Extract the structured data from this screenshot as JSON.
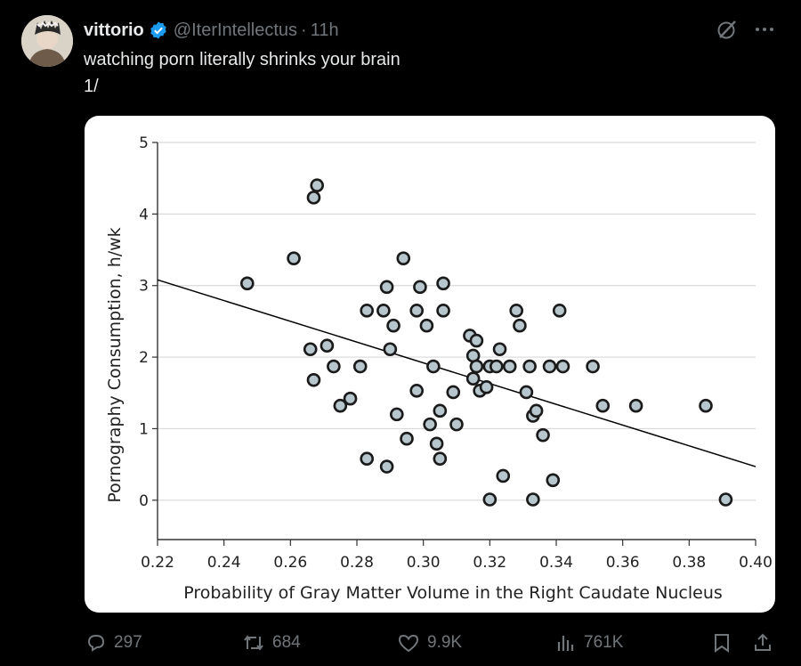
{
  "post": {
    "author_name": "vittorio",
    "handle": "@IterIntellectus",
    "separator": "·",
    "time": "11h",
    "text_line1": "watching porn literally shrinks your brain",
    "text_line2": "1/"
  },
  "icons": {
    "verified": "verified-badge-icon",
    "grok": "grok-icon",
    "more": "more-icon",
    "reply": "reply-icon",
    "repost": "repost-icon",
    "like": "like-icon",
    "views": "views-icon",
    "bookmark": "bookmark-icon",
    "share": "share-icon"
  },
  "stats": {
    "replies": "297",
    "reposts": "684",
    "likes": "9.9K",
    "views": "761K"
  },
  "colors": {
    "background": "#000000",
    "text": "#e7e9ea",
    "muted": "#71767b",
    "verified": "#1d9bf0",
    "point_fill": "#b7c6cc"
  },
  "chart_data": {
    "type": "scatter",
    "xlabel": "Probability of Gray Matter Volume in the Right Caudate Nucleus",
    "ylabel": "Pornography Consumption, h/wk",
    "xlim": [
      0.22,
      0.4
    ],
    "ylim": [
      -0.55,
      5.0
    ],
    "x_ticks": [
      "0.22",
      "0.24",
      "0.26",
      "0.28",
      "0.30",
      "0.32",
      "0.34",
      "0.36",
      "0.38",
      "0.40"
    ],
    "y_ticks": [
      "0",
      "1",
      "2",
      "3",
      "4",
      "5"
    ],
    "grid": "horizontal",
    "trend_line": {
      "x": [
        0.22,
        0.4
      ],
      "y": [
        3.08,
        0.47
      ]
    },
    "points": [
      [
        0.247,
        3.03
      ],
      [
        0.261,
        3.38
      ],
      [
        0.267,
        4.23
      ],
      [
        0.268,
        4.4
      ],
      [
        0.266,
        2.11
      ],
      [
        0.267,
        1.68
      ],
      [
        0.271,
        2.16
      ],
      [
        0.273,
        1.87
      ],
      [
        0.275,
        1.32
      ],
      [
        0.278,
        1.42
      ],
      [
        0.281,
        1.87
      ],
      [
        0.283,
        0.58
      ],
      [
        0.283,
        2.65
      ],
      [
        0.288,
        2.65
      ],
      [
        0.289,
        2.98
      ],
      [
        0.289,
        0.47
      ],
      [
        0.29,
        2.11
      ],
      [
        0.291,
        2.44
      ],
      [
        0.292,
        1.2
      ],
      [
        0.294,
        3.38
      ],
      [
        0.295,
        0.86
      ],
      [
        0.298,
        1.53
      ],
      [
        0.298,
        2.65
      ],
      [
        0.299,
        2.98
      ],
      [
        0.301,
        2.44
      ],
      [
        0.302,
        1.06
      ],
      [
        0.303,
        1.87
      ],
      [
        0.304,
        0.79
      ],
      [
        0.305,
        1.25
      ],
      [
        0.305,
        0.58
      ],
      [
        0.306,
        3.03
      ],
      [
        0.306,
        2.65
      ],
      [
        0.309,
        1.51
      ],
      [
        0.31,
        1.06
      ],
      [
        0.314,
        2.3
      ],
      [
        0.315,
        2.02
      ],
      [
        0.315,
        1.7
      ],
      [
        0.316,
        2.23
      ],
      [
        0.316,
        1.87
      ],
      [
        0.317,
        1.53
      ],
      [
        0.319,
        1.58
      ],
      [
        0.32,
        1.87
      ],
      [
        0.32,
        0.01
      ],
      [
        0.322,
        1.87
      ],
      [
        0.323,
        2.11
      ],
      [
        0.324,
        0.34
      ],
      [
        0.326,
        1.87
      ],
      [
        0.328,
        2.65
      ],
      [
        0.329,
        2.44
      ],
      [
        0.331,
        1.51
      ],
      [
        0.332,
        1.87
      ],
      [
        0.333,
        1.18
      ],
      [
        0.333,
        0.01
      ],
      [
        0.334,
        1.25
      ],
      [
        0.336,
        0.91
      ],
      [
        0.338,
        1.87
      ],
      [
        0.339,
        0.28
      ],
      [
        0.341,
        2.65
      ],
      [
        0.342,
        1.87
      ],
      [
        0.351,
        1.87
      ],
      [
        0.354,
        1.32
      ],
      [
        0.364,
        1.32
      ],
      [
        0.385,
        1.32
      ],
      [
        0.391,
        0.01
      ]
    ]
  }
}
